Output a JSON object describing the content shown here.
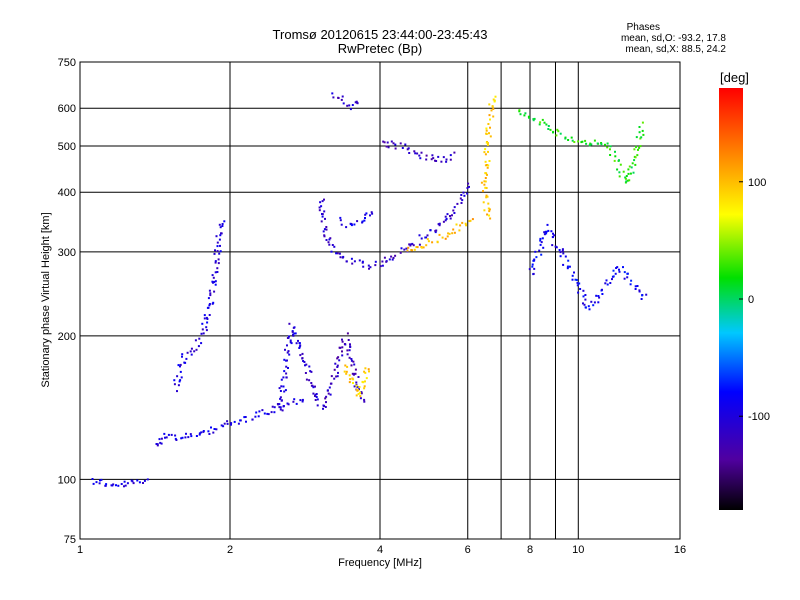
{
  "header": {
    "title_line1": "Tromsø 20120615 23:44:00-23:45:43",
    "title_line2": "RwPretec (Bp)",
    "stats_label": "Phases",
    "stats_o": "mean, sd,O: -93.2, 17.8",
    "stats_x": "mean, sd,X:  88.5, 24.2"
  },
  "colorbar": {
    "unit": "[deg]",
    "ticks": [
      "100",
      "0",
      "-100"
    ],
    "tick_values": [
      100,
      0,
      -100
    ],
    "range": [
      -180,
      180
    ]
  },
  "chart_data": {
    "type": "scatter",
    "xlabel": "Frequency [MHz]",
    "ylabel": "Stationary phase Virtual Height [km]",
    "xscale": "log",
    "yscale": "log",
    "xlim": [
      1,
      16
    ],
    "ylim": [
      75,
      750
    ],
    "x_ticks": [
      "1",
      "2",
      "4",
      "6",
      "8",
      "10",
      "16"
    ],
    "x_tick_values": [
      1,
      2,
      4,
      6,
      8,
      10,
      16
    ],
    "y_ticks": [
      "750",
      "600",
      "500",
      "400",
      "300",
      "200",
      "100",
      "75"
    ],
    "y_tick_values": [
      750,
      600,
      500,
      400,
      300,
      200,
      100,
      75
    ],
    "grid": true,
    "series": [
      {
        "trace": [
          [
            1.05,
            100
          ],
          [
            1.1,
            99
          ],
          [
            1.15,
            97
          ],
          [
            1.22,
            98
          ],
          [
            1.3,
            99
          ],
          [
            1.37,
            100
          ]
        ],
        "phase": -95
      },
      {
        "trace": [
          [
            1.4,
            118
          ],
          [
            1.48,
            125
          ],
          [
            1.55,
            123
          ],
          [
            1.65,
            124
          ],
          [
            1.75,
            124
          ],
          [
            1.85,
            128
          ],
          [
            1.95,
            131
          ],
          [
            2.05,
            132
          ],
          [
            2.2,
            136
          ],
          [
            2.4,
            140
          ],
          [
            2.6,
            145
          ],
          [
            2.8,
            148
          ]
        ],
        "phase": -98
      },
      {
        "trace": [
          [
            1.55,
            155
          ],
          [
            1.6,
            180
          ],
          [
            1.68,
            185
          ],
          [
            1.75,
            200
          ],
          [
            1.8,
            225
          ],
          [
            1.85,
            260
          ],
          [
            1.88,
            300
          ],
          [
            1.9,
            330
          ],
          [
            1.92,
            355
          ]
        ],
        "phase": -100
      },
      {
        "trace": [
          [
            2.5,
            140
          ],
          [
            2.55,
            160
          ],
          [
            2.6,
            190
          ],
          [
            2.65,
            210
          ],
          [
            2.7,
            200
          ],
          [
            2.8,
            180
          ],
          [
            2.9,
            160
          ],
          [
            3.0,
            145
          ],
          [
            3.1,
            140
          ]
        ],
        "phase": -105
      },
      {
        "trace": [
          [
            3.1,
            145
          ],
          [
            3.2,
            160
          ],
          [
            3.3,
            180
          ],
          [
            3.4,
            200
          ],
          [
            3.5,
            175
          ],
          [
            3.6,
            155
          ],
          [
            3.7,
            145
          ]
        ],
        "phase": -120
      },
      {
        "trace": [
          [
            3.4,
            175
          ],
          [
            3.5,
            160
          ],
          [
            3.6,
            150
          ],
          [
            3.7,
            160
          ],
          [
            3.75,
            175
          ]
        ],
        "phase": 95
      },
      {
        "trace": [
          [
            3.05,
            390
          ],
          [
            3.05,
            360
          ],
          [
            3.1,
            330
          ],
          [
            3.2,
            305
          ],
          [
            3.35,
            292
          ],
          [
            3.55,
            285
          ],
          [
            3.75,
            282
          ],
          [
            3.95,
            283
          ],
          [
            4.15,
            290
          ],
          [
            4.4,
            300
          ],
          [
            4.7,
            315
          ],
          [
            5.0,
            330
          ],
          [
            5.3,
            345
          ],
          [
            5.6,
            365
          ],
          [
            5.8,
            390
          ],
          [
            6.0,
            420
          ]
        ],
        "phase": -110
      },
      {
        "trace": [
          [
            4.5,
            305
          ],
          [
            4.8,
            310
          ],
          [
            5.1,
            318
          ],
          [
            5.5,
            330
          ],
          [
            5.8,
            340
          ],
          [
            6.0,
            350
          ],
          [
            6.2,
            355
          ]
        ],
        "phase": 100
      },
      {
        "trace": [
          [
            3.3,
            350
          ],
          [
            3.5,
            340
          ],
          [
            3.7,
            350
          ],
          [
            3.9,
            370
          ]
        ],
        "phase": -95
      },
      {
        "trace": [
          [
            4.0,
            510
          ],
          [
            4.4,
            500
          ],
          [
            4.8,
            480
          ],
          [
            5.3,
            470
          ],
          [
            5.7,
            480
          ]
        ],
        "phase": -115
      },
      {
        "trace": [
          [
            3.2,
            640
          ],
          [
            3.5,
            610
          ],
          [
            3.65,
            630
          ]
        ],
        "phase": -110
      },
      {
        "trace": [
          [
            6.7,
            640
          ],
          [
            6.6,
            550
          ],
          [
            6.5,
            450
          ],
          [
            6.45,
            420
          ],
          [
            6.5,
            380
          ],
          [
            6.6,
            350
          ]
        ],
        "phase": 95
      },
      {
        "trace": [
          [
            7.5,
            590
          ],
          [
            8.5,
            560
          ],
          [
            9.5,
            520
          ],
          [
            11.5,
            500
          ],
          [
            12.5,
            420
          ],
          [
            13.5,
            560
          ]
        ],
        "phase": 20
      },
      {
        "trace": [
          [
            8.0,
            270
          ],
          [
            8.6,
            340
          ],
          [
            10.5,
            230
          ],
          [
            12,
            280
          ],
          [
            13.6,
            240
          ]
        ],
        "phase": -90
      }
    ]
  }
}
